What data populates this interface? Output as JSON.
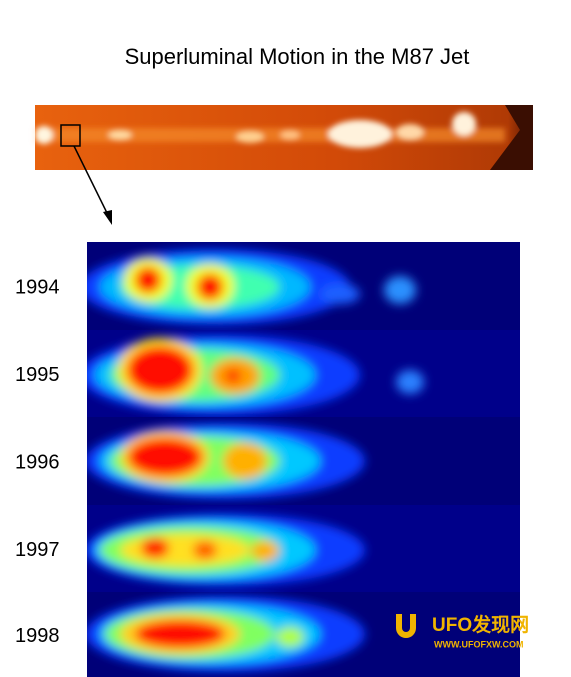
{
  "title": "Superluminal Motion in the M87 Jet",
  "panels": [
    {
      "label": "1994"
    },
    {
      "label": "1995"
    },
    {
      "label": "1996"
    },
    {
      "label": "1997"
    },
    {
      "label": "1998"
    }
  ],
  "watermark": {
    "name": "UFO发现网",
    "url": "WWW.UFOFXW.COM"
  }
}
